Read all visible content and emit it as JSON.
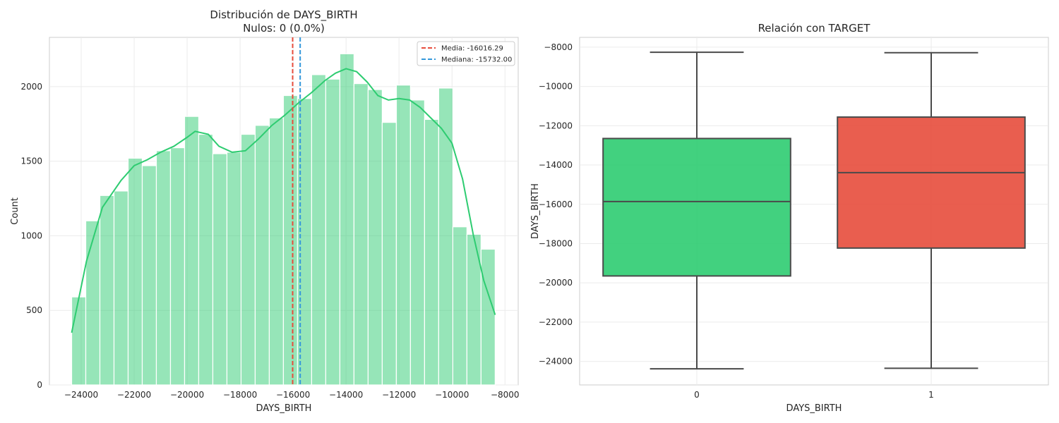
{
  "chart_data": [
    {
      "type": "histogram",
      "title": "Distribución de DAYS_BIRTH",
      "subtitle": "Nulos: 0 (0.0%)",
      "xlabel": "DAYS_BIRTH",
      "ylabel": "Count",
      "xlim": [
        -25200,
        -7500
      ],
      "ylim": [
        0,
        2330
      ],
      "xticks": [
        -24000,
        -22000,
        -20000,
        -18000,
        -16000,
        -14000,
        -12000,
        -10000,
        -8000
      ],
      "yticks": [
        0,
        500,
        1000,
        1500,
        2000
      ],
      "grid": true,
      "bin_edges": [
        -24360,
        -23827,
        -23294,
        -22761,
        -22228,
        -21695,
        -21162,
        -20629,
        -20096,
        -19563,
        -19030,
        -18497,
        -17964,
        -17431,
        -16898,
        -16365,
        -15832,
        -15299,
        -14766,
        -14233,
        -13700,
        -13167,
        -12634,
        -12101,
        -11568,
        -11035,
        -10502,
        -9969,
        -9436,
        -8903,
        -8370
      ],
      "counts": [
        590,
        1100,
        1270,
        1300,
        1520,
        1470,
        1570,
        1590,
        1800,
        1680,
        1550,
        1560,
        1680,
        1740,
        1790,
        1940,
        1920,
        2080,
        2050,
        2220,
        2020,
        1980,
        1760,
        2010,
        1910,
        1780,
        1990,
        1060,
        1010,
        910
      ],
      "bar_color": "#2ecc71",
      "kde_x": [
        -24360,
        -23800,
        -23200,
        -22500,
        -22000,
        -21500,
        -21000,
        -20500,
        -20000,
        -19700,
        -19200,
        -18800,
        -18300,
        -17800,
        -17300,
        -16800,
        -16300,
        -15800,
        -15300,
        -14800,
        -14400,
        -14000,
        -13600,
        -13200,
        -12800,
        -12400,
        -12000,
        -11600,
        -11200,
        -10800,
        -10400,
        -10000,
        -9600,
        -9200,
        -8800,
        -8370
      ],
      "kde_y": [
        350,
        830,
        1190,
        1370,
        1470,
        1510,
        1560,
        1600,
        1660,
        1700,
        1680,
        1600,
        1560,
        1570,
        1650,
        1740,
        1810,
        1890,
        1960,
        2040,
        2090,
        2120,
        2100,
        2030,
        1940,
        1910,
        1920,
        1910,
        1860,
        1790,
        1720,
        1620,
        1380,
        1010,
        700,
        470
      ],
      "kde_color": "#2ecc71",
      "vlines": [
        {
          "label": "Media: -16016.29",
          "value": -16016.29,
          "color": "#e74c3c"
        },
        {
          "label": "Mediana: -15732.00",
          "value": -15732.0,
          "color": "#3498db"
        }
      ],
      "legend_position": "upper right"
    },
    {
      "type": "box",
      "title": "Relación con TARGET",
      "xlabel": "DAYS_BIRTH",
      "ylabel": "DAYS_BIRTH",
      "categories": [
        "0",
        "1"
      ],
      "ylim": [
        -25200,
        -7500
      ],
      "yticks": [
        -8000,
        -10000,
        -12000,
        -14000,
        -16000,
        -18000,
        -20000,
        -22000,
        -24000
      ],
      "grid": true,
      "boxes": [
        {
          "category": "0",
          "whisker_low": -24380,
          "q1": -19650,
          "median": -15860,
          "q3": -12650,
          "whisker_high": -8260,
          "color": "#2ecc71"
        },
        {
          "category": "1",
          "whisker_low": -24350,
          "q1": -18230,
          "median": -14390,
          "q3": -11560,
          "whisker_high": -8280,
          "color": "#e74c3c"
        }
      ]
    }
  ]
}
